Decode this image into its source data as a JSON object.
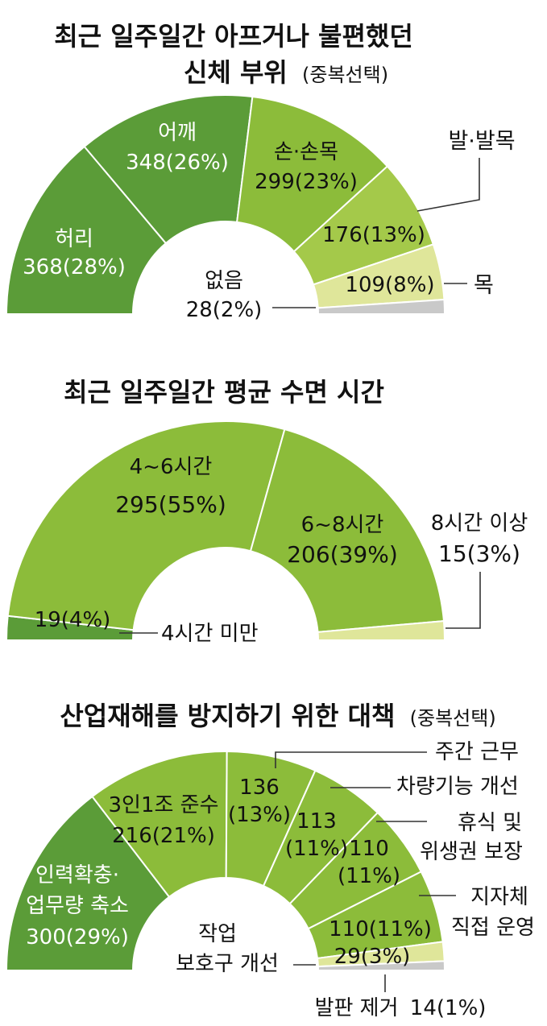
{
  "colors": {
    "dark_green": "#5b9c38",
    "mid_green": "#8cbc3a",
    "light_green": "#a4c94a",
    "lime": "#b5d25a",
    "pale_yellow": "#dfe69a",
    "gray": "#c9c9c9"
  },
  "chart_data": [
    {
      "type": "pie",
      "variant": "semi-donut",
      "title": "최근 일주일간 아프거나 불편했던",
      "title_line2": "신체 부위",
      "note": "(중복선택)",
      "slices": [
        {
          "name": "허리",
          "value": 368,
          "label": "368(28%)",
          "color": "#5b9c38"
        },
        {
          "name": "어깨",
          "value": 348,
          "label": "348(26%)",
          "color": "#5b9c38"
        },
        {
          "name": "손·손목",
          "value": 299,
          "label": "299(23%)",
          "color": "#8cbc3a"
        },
        {
          "name": "발·발목",
          "value": 176,
          "label": "176(13%)",
          "color": "#a4c94a"
        },
        {
          "name": "목",
          "value": 109,
          "label": "109(8%)",
          "color": "#dfe69a"
        },
        {
          "name": "없음",
          "value": 28,
          "label": "28(2%)",
          "color": "#c9c9c9"
        }
      ]
    },
    {
      "type": "pie",
      "variant": "semi-donut",
      "title": "최근 일주일간 평균 수면 시간",
      "slices": [
        {
          "name": "4시간 미만",
          "value": 19,
          "label": "19(4%)",
          "color": "#5b9c38"
        },
        {
          "name": "4~6시간",
          "value": 295,
          "label": "295(55%)",
          "color": "#8cbc3a"
        },
        {
          "name": "6~8시간",
          "value": 206,
          "label": "206(39%)",
          "color": "#8cbc3a"
        },
        {
          "name": "8시간 이상",
          "value": 15,
          "label": "15(3%)",
          "color": "#dfe69a"
        }
      ]
    },
    {
      "type": "pie",
      "variant": "semi-donut",
      "title": "산업재해를 방지하기 위한 대책",
      "note": "(중복선택)",
      "slices": [
        {
          "name": "인력확충·",
          "name_line2": "업무량 축소",
          "value": 300,
          "label": "300(29%)",
          "color": "#5b9c38"
        },
        {
          "name": "3인1조 준수",
          "value": 216,
          "label": "216(21%)",
          "color": "#8cbc3a"
        },
        {
          "name": "주간 근무",
          "value": 136,
          "label": "136",
          "label_line2": "(13%)",
          "color": "#8cbc3a"
        },
        {
          "name": "차량기능 개선",
          "value": 113,
          "label": "113",
          "label_line2": "(11%)",
          "color": "#8cbc3a"
        },
        {
          "name": "휴식 및",
          "name_line2": "위생권 보장",
          "value": 110,
          "label": "110",
          "label_line2": "(11%)",
          "color": "#8cbc3a"
        },
        {
          "name": "지자체",
          "name_line2": "직접 운영",
          "value": 110,
          "label": "110(11%)",
          "color": "#8cbc3a"
        },
        {
          "name": "작업",
          "name_line2": "보호구 개선",
          "value": 29,
          "label": "29(3%)",
          "color": "#dfe69a"
        },
        {
          "name": "발판 제거",
          "value": 14,
          "label": "14(1%)",
          "color": "#c9c9c9"
        }
      ]
    }
  ]
}
